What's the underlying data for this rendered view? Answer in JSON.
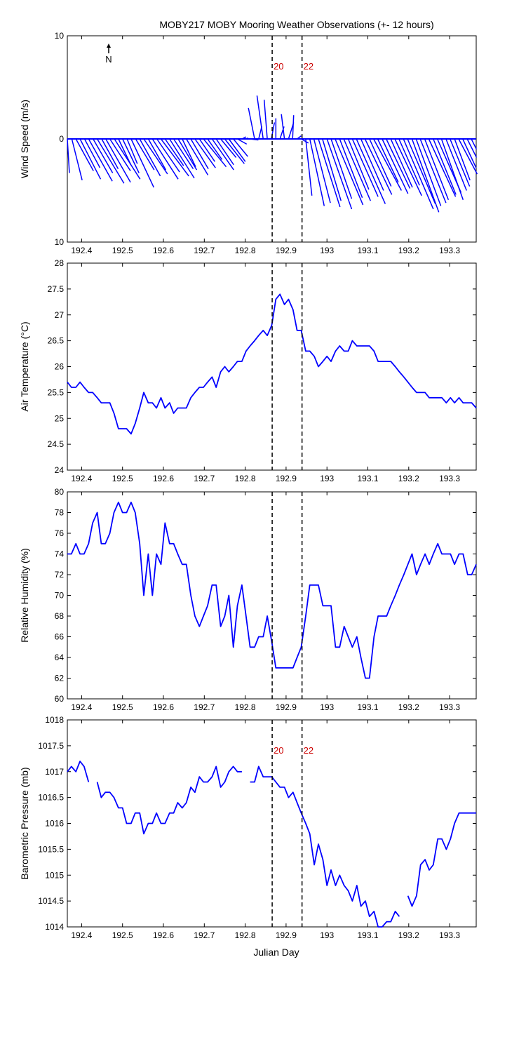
{
  "title": "MOBY217 MOBY Mooring Weather Observations (+- 12 hours)",
  "xlabel": "Julian Day",
  "north_label": "N",
  "colors": {
    "line": "#0000ff",
    "marker_text": "#cc0000",
    "axis": "#000000"
  },
  "xlim": [
    192.365,
    193.365
  ],
  "xticks": [
    192.4,
    192.5,
    192.6,
    192.7,
    192.8,
    192.9,
    193,
    193.1,
    193.2,
    193.3
  ],
  "xtick_labels": [
    "192.4",
    "192.5",
    "192.6",
    "192.7",
    "192.8",
    "192.9",
    "193",
    "193.1",
    "193.2",
    "193.3"
  ],
  "markers": [
    {
      "x": 192.866,
      "label": "20"
    },
    {
      "x": 192.939,
      "label": "22"
    }
  ],
  "chart_data": [
    {
      "type": "vector",
      "ylabel": "Wind Speed (m/s)",
      "ylim": [
        -10,
        10
      ],
      "yticks": [
        -10,
        0,
        10
      ],
      "ytick_labels": [
        "10",
        "0",
        "10"
      ],
      "show_markers": true,
      "vectors": [
        {
          "x": 192.365,
          "u": 0.2,
          "v": -3.3
        },
        {
          "x": 192.376,
          "u": 1.0,
          "v": -4.0
        },
        {
          "x": 192.386,
          "u": 1.7,
          "v": -3.1
        },
        {
          "x": 192.396,
          "u": 2.0,
          "v": -3.9
        },
        {
          "x": 192.407,
          "u": 1.5,
          "v": -2.8
        },
        {
          "x": 192.417,
          "u": 2.3,
          "v": -4.1
        },
        {
          "x": 192.428,
          "u": 1.9,
          "v": -3.3
        },
        {
          "x": 192.438,
          "u": 2.6,
          "v": -4.3
        },
        {
          "x": 192.449,
          "u": 1.6,
          "v": -2.9
        },
        {
          "x": 192.459,
          "u": 2.4,
          "v": -4.2
        },
        {
          "x": 192.469,
          "u": 2.0,
          "v": -3.1
        },
        {
          "x": 192.48,
          "u": 2.5,
          "v": -3.9
        },
        {
          "x": 192.49,
          "u": 1.2,
          "v": -2.5
        },
        {
          "x": 192.5,
          "u": 1.6,
          "v": -3.3
        },
        {
          "x": 192.511,
          "u": 1.0,
          "v": -2.4
        },
        {
          "x": 192.521,
          "u": 2.2,
          "v": -4.7
        },
        {
          "x": 192.532,
          "u": 1.8,
          "v": -3.0
        },
        {
          "x": 192.542,
          "u": 2.0,
          "v": -3.6
        },
        {
          "x": 192.552,
          "u": 2.3,
          "v": -3.4
        },
        {
          "x": 192.563,
          "u": 1.7,
          "v": -3.0
        },
        {
          "x": 192.573,
          "u": 2.5,
          "v": -3.9
        },
        {
          "x": 192.584,
          "u": 2.2,
          "v": -3.2
        },
        {
          "x": 192.594,
          "u": 2.7,
          "v": -3.6
        },
        {
          "x": 192.604,
          "u": 1.8,
          "v": -2.6
        },
        {
          "x": 192.615,
          "u": 2.4,
          "v": -3.8
        },
        {
          "x": 192.625,
          "u": 1.9,
          "v": -2.9
        },
        {
          "x": 192.636,
          "u": 1.8,
          "v": -3.0
        },
        {
          "x": 192.646,
          "u": 1.3,
          "v": -2.7
        },
        {
          "x": 192.656,
          "u": 2.1,
          "v": -3.5
        },
        {
          "x": 192.667,
          "u": 1.7,
          "v": -2.9
        },
        {
          "x": 192.677,
          "u": 2.0,
          "v": -2.8
        },
        {
          "x": 192.688,
          "u": 1.5,
          "v": -2.2
        },
        {
          "x": 192.698,
          "u": 2.2,
          "v": -2.7
        },
        {
          "x": 192.708,
          "u": 1.4,
          "v": -2.0
        },
        {
          "x": 192.719,
          "u": 2.1,
          "v": -3.0
        },
        {
          "x": 192.729,
          "u": 1.7,
          "v": -2.5
        },
        {
          "x": 192.74,
          "u": 1.5,
          "v": -1.8
        },
        {
          "x": 192.75,
          "u": 1.9,
          "v": -2.4
        },
        {
          "x": 192.76,
          "u": 1.6,
          "v": -2.2
        },
        {
          "x": 192.771,
          "u": 1.4,
          "v": -1.7
        },
        {
          "x": 192.781,
          "u": 0.9,
          "v": -0.5
        },
        {
          "x": 192.792,
          "u": 0.4,
          "v": 0.2
        },
        {
          "x": 192.802,
          "u": 0.2,
          "v": 0.1
        },
        {
          "x": 192.812,
          "u": 0.8,
          "v": -0.1
        },
        {
          "x": 192.823,
          "u": -0.6,
          "v": 3.0
        },
        {
          "x": 192.833,
          "u": 0.3,
          "v": 1.2
        },
        {
          "x": 192.844,
          "u": -0.6,
          "v": 4.2
        },
        {
          "x": 192.854,
          "u": -0.3,
          "v": 3.8
        },
        {
          "x": 192.864,
          "u": 0.3,
          "v": 1.6
        },
        {
          "x": 192.875,
          "u": 0.0,
          "v": 2.0
        },
        {
          "x": 192.885,
          "u": 0.4,
          "v": 1.2
        },
        {
          "x": 192.896,
          "u": -0.3,
          "v": 2.4
        },
        {
          "x": 192.906,
          "u": 0.5,
          "v": 1.6
        },
        {
          "x": 192.916,
          "u": 0.1,
          "v": 2.3
        },
        {
          "x": 192.927,
          "u": 0.4,
          "v": 0.3
        },
        {
          "x": 192.937,
          "u": 0.7,
          "v": -0.4
        },
        {
          "x": 192.948,
          "u": 0.6,
          "v": -5.5
        },
        {
          "x": 192.958,
          "u": 1.4,
          "v": -6.5
        },
        {
          "x": 192.968,
          "u": 1.6,
          "v": -6.2
        },
        {
          "x": 192.979,
          "u": 2.1,
          "v": -6.6
        },
        {
          "x": 192.989,
          "u": 1.8,
          "v": -6.0
        },
        {
          "x": 193.0,
          "u": 2.4,
          "v": -6.8
        },
        {
          "x": 193.01,
          "u": 2.0,
          "v": -5.8
        },
        {
          "x": 193.02,
          "u": 2.7,
          "v": -6.4
        },
        {
          "x": 193.031,
          "u": 2.2,
          "v": -5.7
        },
        {
          "x": 193.041,
          "u": 2.6,
          "v": -6.0
        },
        {
          "x": 193.052,
          "u": 2.0,
          "v": -4.9
        },
        {
          "x": 193.062,
          "u": 2.5,
          "v": -5.6
        },
        {
          "x": 193.072,
          "u": 2.8,
          "v": -6.3
        },
        {
          "x": 193.083,
          "u": 2.2,
          "v": -5.0
        },
        {
          "x": 193.093,
          "u": 2.6,
          "v": -5.4
        },
        {
          "x": 193.104,
          "u": 2.1,
          "v": -4.6
        },
        {
          "x": 193.114,
          "u": 2.7,
          "v": -5.0
        },
        {
          "x": 193.124,
          "u": 2.0,
          "v": -4.2
        },
        {
          "x": 193.135,
          "u": 2.5,
          "v": -5.3
        },
        {
          "x": 193.145,
          "u": 2.3,
          "v": -4.8
        },
        {
          "x": 193.156,
          "u": 2.1,
          "v": -4.7
        },
        {
          "x": 193.166,
          "u": 2.6,
          "v": -5.5
        },
        {
          "x": 193.176,
          "u": 2.0,
          "v": -4.5
        },
        {
          "x": 193.187,
          "u": 2.9,
          "v": -6.8
        },
        {
          "x": 193.197,
          "u": 2.7,
          "v": -6.3
        },
        {
          "x": 193.208,
          "u": 2.6,
          "v": -7.1
        },
        {
          "x": 193.218,
          "u": 2.4,
          "v": -6.5
        },
        {
          "x": 193.228,
          "u": 2.5,
          "v": -6.2
        },
        {
          "x": 193.239,
          "u": 2.3,
          "v": -5.9
        },
        {
          "x": 193.249,
          "u": 2.6,
          "v": -5.6
        },
        {
          "x": 193.26,
          "u": 2.2,
          "v": -5.4
        },
        {
          "x": 193.27,
          "u": 2.3,
          "v": -5.2
        },
        {
          "x": 193.28,
          "u": 2.1,
          "v": -5.9
        },
        {
          "x": 193.291,
          "u": 2.0,
          "v": -5.0
        },
        {
          "x": 193.301,
          "u": 1.9,
          "v": -4.6
        },
        {
          "x": 193.312,
          "u": 1.5,
          "v": -4.0
        },
        {
          "x": 193.322,
          "u": 1.8,
          "v": -3.4
        },
        {
          "x": 193.332,
          "u": 1.3,
          "v": -2.8
        },
        {
          "x": 193.343,
          "u": 0.9,
          "v": -1.8
        },
        {
          "x": 193.353,
          "u": 0.5,
          "v": -1.0
        }
      ]
    },
    {
      "type": "line",
      "ylabel": "Air Temperature (°C)",
      "ylim": [
        24,
        28
      ],
      "yticks": [
        24,
        24.5,
        25,
        25.5,
        26,
        26.5,
        27,
        27.5,
        28
      ],
      "ytick_labels": [
        "24",
        "24.5",
        "25",
        "25.5",
        "26",
        "26.5",
        "27",
        "27.5",
        "28"
      ],
      "show_markers": false,
      "x": [
        192.365,
        192.375,
        192.386,
        192.396,
        192.406,
        192.417,
        192.427,
        192.438,
        192.448,
        192.458,
        192.469,
        192.479,
        192.49,
        192.5,
        192.51,
        192.521,
        192.531,
        192.542,
        192.552,
        192.563,
        192.573,
        192.583,
        192.594,
        192.604,
        192.615,
        192.625,
        192.635,
        192.646,
        192.656,
        192.667,
        192.677,
        192.688,
        192.698,
        192.708,
        192.719,
        192.729,
        192.74,
        192.75,
        192.76,
        192.771,
        192.781,
        192.792,
        192.802,
        192.812,
        192.823,
        192.833,
        192.844,
        192.854,
        192.865,
        192.875,
        192.885,
        192.896,
        192.906,
        192.917,
        192.927,
        192.937,
        192.948,
        192.958,
        192.969,
        192.979,
        192.99,
        193.0,
        193.01,
        193.021,
        193.031,
        193.042,
        193.052,
        193.062,
        193.073,
        193.083,
        193.094,
        193.104,
        193.115,
        193.125,
        193.135,
        193.146,
        193.156,
        193.167,
        193.177,
        193.188,
        193.198,
        193.208,
        193.219,
        193.229,
        193.24,
        193.25,
        193.26,
        193.271,
        193.281,
        193.292,
        193.302,
        193.312,
        193.323,
        193.333,
        193.344,
        193.354,
        193.365
      ],
      "values": [
        25.7,
        25.6,
        25.6,
        25.7,
        25.6,
        25.5,
        25.5,
        25.4,
        25.3,
        25.3,
        25.3,
        25.1,
        24.8,
        24.8,
        24.8,
        24.7,
        24.9,
        25.2,
        25.5,
        25.3,
        25.3,
        25.2,
        25.4,
        25.2,
        25.3,
        25.1,
        25.2,
        25.2,
        25.2,
        25.4,
        25.5,
        25.6,
        25.6,
        25.7,
        25.8,
        25.6,
        25.9,
        26.0,
        25.9,
        26.0,
        26.1,
        26.1,
        26.3,
        26.4,
        26.5,
        26.6,
        26.7,
        26.6,
        26.8,
        27.3,
        27.4,
        27.2,
        27.3,
        27.1,
        26.7,
        26.7,
        26.3,
        26.3,
        26.2,
        26.0,
        26.1,
        26.2,
        26.1,
        26.3,
        26.4,
        26.3,
        26.3,
        26.5,
        26.4,
        26.4,
        26.4,
        26.4,
        26.3,
        26.1,
        26.1,
        26.1,
        26.1,
        26.0,
        25.9,
        25.8,
        25.7,
        25.6,
        25.5,
        25.5,
        25.5,
        25.4,
        25.4,
        25.4,
        25.4,
        25.3,
        25.4,
        25.3,
        25.4,
        25.3,
        25.3,
        25.3,
        25.2
      ]
    },
    {
      "type": "line",
      "ylabel": "Relative Humidity (%)",
      "ylim": [
        60,
        80
      ],
      "yticks": [
        60,
        62,
        64,
        66,
        68,
        70,
        72,
        74,
        76,
        78,
        80
      ],
      "ytick_labels": [
        "60",
        "62",
        "64",
        "66",
        "68",
        "70",
        "72",
        "74",
        "76",
        "78",
        "80"
      ],
      "show_markers": false,
      "x": [
        192.365,
        192.375,
        192.386,
        192.396,
        192.406,
        192.417,
        192.427,
        192.438,
        192.448,
        192.458,
        192.469,
        192.479,
        192.49,
        192.5,
        192.51,
        192.521,
        192.531,
        192.542,
        192.552,
        192.563,
        192.573,
        192.583,
        192.594,
        192.604,
        192.615,
        192.625,
        192.635,
        192.646,
        192.656,
        192.667,
        192.677,
        192.688,
        192.698,
        192.708,
        192.719,
        192.729,
        192.74,
        192.75,
        192.76,
        192.771,
        192.781,
        192.792,
        192.802,
        192.812,
        192.823,
        192.833,
        192.844,
        192.854,
        192.865,
        192.875,
        192.885,
        192.896,
        192.906,
        192.917,
        192.927,
        192.937,
        192.948,
        192.958,
        192.969,
        192.979,
        192.99,
        193.0,
        193.01,
        193.021,
        193.031,
        193.042,
        193.052,
        193.062,
        193.073,
        193.083,
        193.094,
        193.104,
        193.115,
        193.125,
        193.135,
        193.146,
        193.156,
        193.167,
        193.177,
        193.188,
        193.198,
        193.208,
        193.219,
        193.229,
        193.24,
        193.25,
        193.26,
        193.271,
        193.281,
        193.292,
        193.302,
        193.312,
        193.323,
        193.333,
        193.344,
        193.354,
        193.365
      ],
      "values": [
        74,
        74,
        75,
        74,
        74,
        75,
        77,
        78,
        75,
        75,
        76,
        78,
        79,
        78,
        78,
        79,
        78,
        75,
        70,
        74,
        70,
        74,
        73,
        77,
        75,
        75,
        74,
        73,
        73,
        70,
        68,
        67,
        68,
        69,
        71,
        71,
        67,
        68,
        70,
        65,
        69,
        71,
        68,
        65,
        65,
        66,
        66,
        68,
        65.5,
        63,
        63,
        63,
        63,
        63,
        64,
        65,
        68,
        71,
        71,
        71,
        69,
        69,
        69,
        65,
        65,
        67,
        66,
        65,
        66,
        64,
        62,
        62,
        66,
        68,
        68,
        68,
        69,
        70,
        71,
        72,
        73,
        74,
        72,
        73,
        74,
        73,
        74,
        75,
        74,
        74,
        74,
        73,
        74,
        74,
        72,
        72,
        73
      ]
    },
    {
      "type": "line",
      "ylabel": "Barometric Pressure (mb)",
      "ylim": [
        1014,
        1018
      ],
      "yticks": [
        1014,
        1014.5,
        1015,
        1015.5,
        1016,
        1016.5,
        1017,
        1017.5,
        1018
      ],
      "ytick_labels": [
        "1014",
        "1014.5",
        "1015",
        "1015.5",
        "1016",
        "1016.5",
        "1017",
        "1017.5",
        "1018"
      ],
      "show_markers": true,
      "x": [
        192.365,
        192.375,
        192.386,
        192.396,
        192.406,
        192.417,
        192.427,
        192.438,
        192.448,
        192.458,
        192.469,
        192.479,
        192.49,
        192.5,
        192.51,
        192.521,
        192.531,
        192.542,
        192.552,
        192.563,
        192.573,
        192.583,
        192.594,
        192.604,
        192.615,
        192.625,
        192.635,
        192.646,
        192.656,
        192.667,
        192.677,
        192.688,
        192.698,
        192.708,
        192.719,
        192.729,
        192.74,
        192.75,
        192.76,
        192.771,
        192.781,
        192.792,
        192.802,
        192.812,
        192.823,
        192.833,
        192.844,
        192.854,
        192.865,
        192.875,
        192.885,
        192.896,
        192.906,
        192.917,
        192.927,
        192.937,
        192.948,
        192.958,
        192.969,
        192.979,
        192.99,
        193.0,
        193.01,
        193.021,
        193.031,
        193.042,
        193.052,
        193.062,
        193.073,
        193.083,
        193.094,
        193.104,
        193.115,
        193.125,
        193.135,
        193.146,
        193.156,
        193.167,
        193.177,
        193.188,
        193.198,
        193.208,
        193.219,
        193.229,
        193.24,
        193.25,
        193.26,
        193.271,
        193.281,
        193.292,
        193.302,
        193.312,
        193.323,
        193.333,
        193.344,
        193.354,
        193.365
      ],
      "values": [
        1017.0,
        1017.1,
        1017.0,
        1017.2,
        1017.1,
        1016.8,
        null,
        1016.8,
        1016.5,
        1016.6,
        1016.6,
        1016.5,
        1016.3,
        1016.3,
        1016.0,
        1016.0,
        1016.2,
        1016.2,
        1015.8,
        1016.0,
        1016.0,
        1016.2,
        1016.0,
        1016.0,
        1016.2,
        1016.2,
        1016.4,
        1016.3,
        1016.4,
        1016.7,
        1016.6,
        1016.9,
        1016.8,
        1016.8,
        1016.9,
        1017.1,
        1016.7,
        1016.8,
        1017.0,
        1017.1,
        1017.0,
        1017.0,
        null,
        1016.8,
        1016.8,
        1017.1,
        1016.9,
        1016.9,
        1016.9,
        1016.8,
        1016.7,
        1016.7,
        1016.5,
        1016.6,
        1016.4,
        1016.2,
        1016.0,
        1015.8,
        1015.2,
        1015.6,
        1015.3,
        1014.8,
        1015.1,
        1014.8,
        1015.0,
        1014.8,
        1014.7,
        1014.5,
        1014.8,
        1014.4,
        1014.5,
        1014.2,
        1014.3,
        1014.0,
        1014.0,
        1014.1,
        1014.1,
        1014.3,
        1014.2,
        null,
        1014.6,
        1014.4,
        1014.6,
        1015.2,
        1015.3,
        1015.1,
        1015.2,
        1015.7,
        1015.7,
        1015.5,
        1015.7,
        1016.0,
        1016.2,
        1016.2,
        1016.2,
        1016.2,
        1016.2
      ]
    }
  ]
}
